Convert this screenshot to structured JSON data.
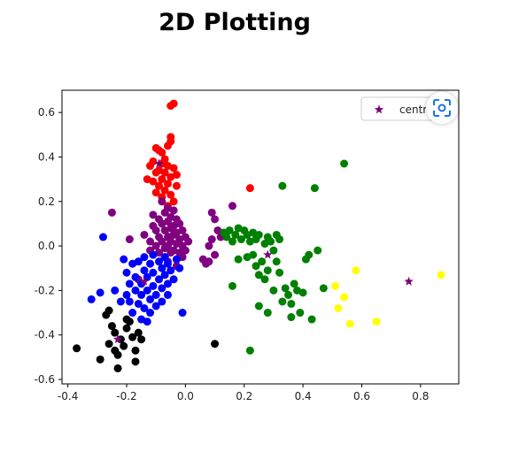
{
  "page": {
    "title": "2D Plotting"
  },
  "chart_data": {
    "type": "scatter",
    "title": "",
    "xlabel": "",
    "ylabel": "",
    "xlim": [
      -0.42,
      0.93
    ],
    "ylim": [
      -0.62,
      0.7
    ],
    "x_ticks": [
      "-0.4",
      "-0.2",
      "0.0",
      "0.2",
      "0.4",
      "0.6",
      "0.8"
    ],
    "y_ticks": [
      "0.6",
      "0.4",
      "0.2",
      "0.0",
      "-0.2",
      "-0.4",
      "-0.6"
    ],
    "legend": {
      "placement": "top-right",
      "entries": [
        {
          "label": "centroid",
          "color": "#7a007a",
          "marker": "star"
        }
      ]
    },
    "series": [
      {
        "color": "#ff0000",
        "points": [
          [
            -0.04,
            0.64
          ],
          [
            -0.05,
            0.63
          ],
          [
            -0.05,
            0.49
          ],
          [
            -0.05,
            0.47
          ],
          [
            -0.06,
            0.45
          ],
          [
            -0.09,
            0.43
          ],
          [
            -0.08,
            0.42
          ],
          [
            -0.1,
            0.44
          ],
          [
            -0.07,
            0.39
          ],
          [
            -0.08,
            0.37
          ],
          [
            -0.11,
            0.38
          ],
          [
            -0.12,
            0.36
          ],
          [
            -0.06,
            0.36
          ],
          [
            -0.04,
            0.35
          ],
          [
            -0.09,
            0.34
          ],
          [
            -0.07,
            0.33
          ],
          [
            -0.1,
            0.33
          ],
          [
            -0.03,
            0.32
          ],
          [
            -0.05,
            0.31
          ],
          [
            -0.08,
            0.3
          ],
          [
            -0.13,
            0.3
          ],
          [
            -0.11,
            0.29
          ],
          [
            -0.06,
            0.28
          ],
          [
            -0.09,
            0.27
          ],
          [
            -0.03,
            0.27
          ],
          [
            -0.07,
            0.25
          ],
          [
            -0.1,
            0.24
          ],
          [
            -0.05,
            0.23
          ],
          [
            -0.08,
            0.22
          ],
          [
            -0.04,
            0.2
          ],
          [
            -0.06,
            0.18
          ],
          [
            0.22,
            0.26
          ]
        ]
      },
      {
        "color": "#800080",
        "points": [
          [
            -0.25,
            0.15
          ],
          [
            -0.19,
            0.03
          ],
          [
            -0.14,
            0.05
          ],
          [
            -0.12,
            0.02
          ],
          [
            -0.12,
            -0.02
          ],
          [
            -0.11,
            0.14
          ],
          [
            -0.11,
            0.09
          ],
          [
            -0.1,
            0.07
          ],
          [
            -0.1,
            0.0
          ],
          [
            -0.09,
            0.12
          ],
          [
            -0.09,
            0.04
          ],
          [
            -0.09,
            -0.03
          ],
          [
            -0.08,
            0.2
          ],
          [
            -0.08,
            0.1
          ],
          [
            -0.08,
            0.02
          ],
          [
            -0.07,
            0.15
          ],
          [
            -0.07,
            0.07
          ],
          [
            -0.07,
            -0.01
          ],
          [
            -0.07,
            -0.05
          ],
          [
            -0.06,
            0.17
          ],
          [
            -0.06,
            0.11
          ],
          [
            -0.06,
            0.04
          ],
          [
            -0.06,
            0.0
          ],
          [
            -0.05,
            0.13
          ],
          [
            -0.05,
            0.08
          ],
          [
            -0.05,
            0.02
          ],
          [
            -0.05,
            -0.03
          ],
          [
            -0.04,
            0.16
          ],
          [
            -0.04,
            0.09
          ],
          [
            -0.04,
            0.05
          ],
          [
            -0.04,
            -0.02
          ],
          [
            -0.03,
            0.12
          ],
          [
            -0.03,
            0.06
          ],
          [
            -0.03,
            0.01
          ],
          [
            -0.03,
            -0.06
          ],
          [
            -0.02,
            0.1
          ],
          [
            -0.02,
            0.03
          ],
          [
            -0.02,
            -0.03
          ],
          [
            -0.01,
            0.07
          ],
          [
            -0.01,
            0.0
          ],
          [
            0.0,
            0.04
          ],
          [
            0.0,
            -0.02
          ],
          [
            0.01,
            0.02
          ],
          [
            -0.01,
            -0.05
          ],
          [
            -0.03,
            -0.09
          ],
          [
            0.06,
            -0.06
          ],
          [
            0.07,
            -0.08
          ],
          [
            0.08,
            0.0
          ],
          [
            0.08,
            -0.07
          ],
          [
            0.09,
            0.03
          ],
          [
            0.09,
            0.15
          ],
          [
            0.1,
            0.12
          ],
          [
            0.11,
            0.07
          ],
          [
            0.12,
            0.04
          ],
          [
            0.16,
            0.18
          ],
          [
            0.1,
            -0.04
          ],
          [
            -0.16,
            -0.15
          ],
          [
            -0.06,
            -0.07
          ]
        ]
      },
      {
        "color": "#0000ff",
        "points": [
          [
            -0.28,
            0.04
          ],
          [
            -0.32,
            -0.24
          ],
          [
            -0.29,
            -0.21
          ],
          [
            -0.24,
            -0.2
          ],
          [
            -0.22,
            -0.25
          ],
          [
            -0.2,
            -0.12
          ],
          [
            -0.19,
            -0.17
          ],
          [
            -0.19,
            -0.25
          ],
          [
            -0.18,
            -0.3
          ],
          [
            -0.17,
            -0.14
          ],
          [
            -0.17,
            -0.2
          ],
          [
            -0.16,
            -0.07
          ],
          [
            -0.16,
            -0.26
          ],
          [
            -0.15,
            -0.17
          ],
          [
            -0.15,
            -0.22
          ],
          [
            -0.15,
            -0.33
          ],
          [
            -0.14,
            -0.05
          ],
          [
            -0.14,
            -0.11
          ],
          [
            -0.14,
            -0.28
          ],
          [
            -0.13,
            -0.14
          ],
          [
            -0.13,
            -0.2
          ],
          [
            -0.12,
            -0.08
          ],
          [
            -0.12,
            -0.24
          ],
          [
            -0.12,
            -0.3
          ],
          [
            -0.11,
            -0.04
          ],
          [
            -0.11,
            -0.12
          ],
          [
            -0.11,
            -0.18
          ],
          [
            -0.1,
            -0.22
          ],
          [
            -0.1,
            -0.27
          ],
          [
            -0.09,
            -0.07
          ],
          [
            -0.09,
            -0.15
          ],
          [
            -0.08,
            -0.1
          ],
          [
            -0.08,
            -0.19
          ],
          [
            -0.08,
            -0.25
          ],
          [
            -0.07,
            -0.05
          ],
          [
            -0.07,
            -0.13
          ],
          [
            -0.06,
            -0.08
          ],
          [
            -0.06,
            -0.17
          ],
          [
            -0.06,
            -0.22
          ],
          [
            -0.05,
            -0.11
          ],
          [
            -0.04,
            -0.15
          ],
          [
            -0.03,
            -0.06
          ],
          [
            -0.02,
            -0.1
          ],
          [
            -0.01,
            -0.3
          ],
          [
            -0.18,
            -0.08
          ],
          [
            -0.21,
            -0.06
          ],
          [
            -0.13,
            -0.34
          ],
          [
            -0.2,
            -0.22
          ]
        ]
      },
      {
        "color": "#000000",
        "points": [
          [
            -0.37,
            -0.46
          ],
          [
            -0.29,
            -0.51
          ],
          [
            -0.27,
            -0.31
          ],
          [
            -0.26,
            -0.29
          ],
          [
            -0.26,
            -0.44
          ],
          [
            -0.25,
            -0.36
          ],
          [
            -0.24,
            -0.47
          ],
          [
            -0.24,
            -0.39
          ],
          [
            -0.23,
            -0.49
          ],
          [
            -0.23,
            -0.55
          ],
          [
            -0.22,
            -0.42
          ],
          [
            -0.21,
            -0.45
          ],
          [
            -0.2,
            -0.37
          ],
          [
            -0.19,
            -0.34
          ],
          [
            -0.18,
            -0.41
          ],
          [
            -0.17,
            -0.52
          ],
          [
            -0.17,
            -0.47
          ],
          [
            -0.16,
            -0.39
          ],
          [
            -0.15,
            -0.42
          ],
          [
            -0.2,
            -0.33
          ],
          [
            0.1,
            -0.44
          ]
        ]
      },
      {
        "color": "#008000",
        "points": [
          [
            0.13,
            0.06
          ],
          [
            0.14,
            0.04
          ],
          [
            0.15,
            0.07
          ],
          [
            0.16,
            0.02
          ],
          [
            0.17,
            0.05
          ],
          [
            0.18,
            0.08
          ],
          [
            0.19,
            0.03
          ],
          [
            0.18,
            -0.06
          ],
          [
            0.2,
            0.07
          ],
          [
            0.21,
            0.05
          ],
          [
            0.21,
            -0.05
          ],
          [
            0.22,
            0.02
          ],
          [
            0.23,
            0.06
          ],
          [
            0.23,
            -0.04
          ],
          [
            0.24,
            0.03
          ],
          [
            0.24,
            -0.09
          ],
          [
            0.25,
            0.05
          ],
          [
            0.25,
            -0.13
          ],
          [
            0.26,
            -0.07
          ],
          [
            0.27,
            0.01
          ],
          [
            0.27,
            -0.15
          ],
          [
            0.28,
            0.04
          ],
          [
            0.28,
            -0.11
          ],
          [
            0.29,
            0.02
          ],
          [
            0.3,
            -0.02
          ],
          [
            0.3,
            -0.2
          ],
          [
            0.31,
            0.05
          ],
          [
            0.31,
            -0.07
          ],
          [
            0.32,
            0.03
          ],
          [
            0.32,
            -0.12
          ],
          [
            0.33,
            0.27
          ],
          [
            0.33,
            -0.25
          ],
          [
            0.34,
            -0.19
          ],
          [
            0.35,
            -0.22
          ],
          [
            0.36,
            -0.26
          ],
          [
            0.37,
            -0.17
          ],
          [
            0.38,
            -0.2
          ],
          [
            0.39,
            -0.3
          ],
          [
            0.4,
            -0.21
          ],
          [
            0.41,
            -0.06
          ],
          [
            0.42,
            -0.04
          ],
          [
            0.43,
            -0.33
          ],
          [
            0.44,
            0.26
          ],
          [
            0.45,
            -0.02
          ],
          [
            0.47,
            -0.19
          ],
          [
            0.54,
            0.37
          ],
          [
            0.16,
            -0.18
          ],
          [
            0.25,
            -0.27
          ],
          [
            0.22,
            -0.47
          ],
          [
            0.28,
            -0.3
          ],
          [
            0.36,
            -0.32
          ]
        ]
      },
      {
        "color": "#ffff00",
        "points": [
          [
            0.51,
            -0.18
          ],
          [
            0.52,
            -0.28
          ],
          [
            0.54,
            -0.23
          ],
          [
            0.56,
            -0.35
          ],
          [
            0.58,
            -0.11
          ],
          [
            0.65,
            -0.34
          ],
          [
            0.87,
            -0.13
          ]
        ]
      }
    ],
    "centroids": [
      [
        -0.09,
        0.37
      ],
      [
        -0.06,
        0.05
      ],
      [
        -0.14,
        -0.16
      ],
      [
        -0.23,
        -0.42
      ],
      [
        0.28,
        -0.04
      ],
      [
        0.76,
        -0.16
      ]
    ],
    "centroid_color": "#7a007a"
  }
}
